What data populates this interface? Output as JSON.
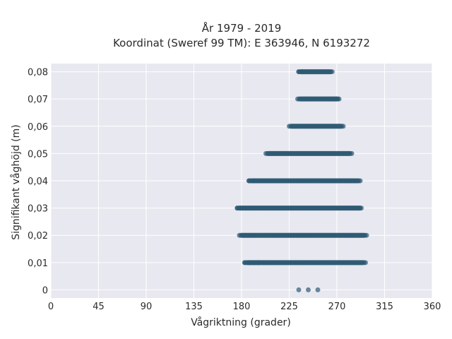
{
  "chart_data": {
    "type": "scatter",
    "title": "År 1979 - 2019",
    "subtitle": "Koordinat (Sweref 99 TM): E 363946, N 6193272",
    "xlabel": "Vågriktning (grader)",
    "ylabel": "Signifikant våghöjd (m)",
    "xlim": [
      0,
      360
    ],
    "ylim": [
      -0.003,
      0.083
    ],
    "x_ticks": [
      0,
      45,
      90,
      135,
      180,
      225,
      270,
      315,
      360
    ],
    "x_tick_labels": [
      "0",
      "45",
      "90",
      "135",
      "180",
      "225",
      "270",
      "315",
      "360"
    ],
    "y_ticks": [
      0,
      0.01,
      0.02,
      0.03,
      0.04,
      0.05,
      0.06,
      0.07,
      0.08
    ],
    "y_tick_labels": [
      "0",
      "0,01",
      "0,02",
      "0,03",
      "0,04",
      "0,05",
      "0,06",
      "0,07",
      "0,08"
    ],
    "grid": true,
    "background_color": "#e8e8f0",
    "marker_color": "#2e5a73",
    "series": [
      {
        "points": [
          {
            "height": 0.0,
            "direction_min": 234,
            "direction_max": 252,
            "isolated": [
              234,
              243,
              252
            ]
          },
          {
            "height": 0.01,
            "direction_min": 183,
            "direction_max": 297,
            "isolated": [
              183,
              188,
              192,
              196
            ]
          },
          {
            "height": 0.02,
            "direction_min": 178,
            "direction_max": 298,
            "isolated": []
          },
          {
            "height": 0.03,
            "direction_min": 176,
            "direction_max": 294,
            "isolated": [
              176
            ]
          },
          {
            "height": 0.04,
            "direction_min": 187,
            "direction_max": 292,
            "isolated": [
              187,
              192
            ]
          },
          {
            "height": 0.05,
            "direction_min": 203,
            "direction_max": 284,
            "isolated": []
          },
          {
            "height": 0.06,
            "direction_min": 225,
            "direction_max": 276,
            "isolated": []
          },
          {
            "height": 0.07,
            "direction_min": 233,
            "direction_max": 273,
            "isolated": []
          },
          {
            "height": 0.08,
            "direction_min": 234,
            "direction_max": 266,
            "isolated": [
              234,
              237
            ]
          }
        ]
      }
    ]
  }
}
